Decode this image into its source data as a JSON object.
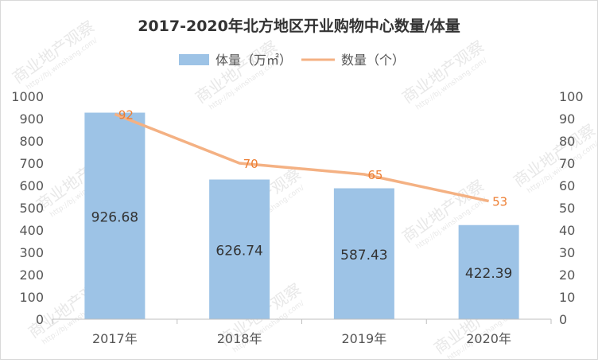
{
  "chart_data": {
    "type": "bar",
    "title": "2017-2020年北方地区开业购物中心数量/体量",
    "categories": [
      "2017年",
      "2018年",
      "2019年",
      "2020年"
    ],
    "series": [
      {
        "name": "体量（万㎡）",
        "type": "bar",
        "axis": "left",
        "color": "#9dc3e6",
        "values": [
          926.68,
          626.74,
          587.43,
          422.39
        ],
        "data_labels": [
          "926.68",
          "626.74",
          "587.43",
          "422.39"
        ]
      },
      {
        "name": "数量（个）",
        "type": "line",
        "axis": "right",
        "color": "#f4b183",
        "values": [
          92,
          70,
          65,
          53
        ],
        "data_labels": [
          "92",
          "70",
          "65",
          "53"
        ]
      }
    ],
    "y_left": {
      "min": 0,
      "max": 1000,
      "step": 100,
      "ticks": [
        "0",
        "100",
        "200",
        "300",
        "400",
        "500",
        "600",
        "700",
        "800",
        "900",
        "1000"
      ]
    },
    "y_right": {
      "min": 0,
      "max": 100,
      "step": 10,
      "ticks": [
        "0",
        "10",
        "20",
        "30",
        "40",
        "50",
        "60",
        "70",
        "80",
        "90",
        "100"
      ]
    },
    "legend_position": "top",
    "grid": false
  },
  "watermark": {
    "text": "商业地产观察",
    "url": "http://bj.winshang.com/"
  }
}
